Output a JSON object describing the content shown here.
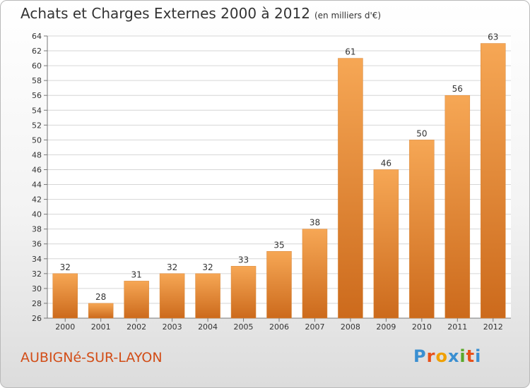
{
  "header": {
    "title": "Achats et Charges Externes 2000 à 2012",
    "subtitle": "(en milliers d'€)"
  },
  "footer": {
    "commune": "AUBIGNé-SUR-LAYON",
    "logo": "Proxiti"
  },
  "colors": {
    "bar_light": "#f6a755",
    "bar_dark": "#cc6a1c",
    "commune_text": "#d24d17",
    "logo_letters": [
      "#3a8fd1",
      "#e8501a",
      "#f0a000",
      "#3a8fd1",
      "#5aa82a",
      "#e8501a",
      "#3a8fd1"
    ]
  },
  "chart_data": {
    "type": "bar",
    "categories": [
      "2000",
      "2001",
      "2002",
      "2003",
      "2004",
      "2005",
      "2006",
      "2007",
      "2008",
      "2009",
      "2010",
      "2011",
      "2012"
    ],
    "values": [
      32,
      28,
      31,
      32,
      32,
      33,
      35,
      38,
      61,
      46,
      50,
      56,
      63
    ],
    "data_labels": [
      "32",
      "28",
      "31",
      "32",
      "32",
      "33",
      "35",
      "38",
      "61",
      "46",
      "50",
      "56",
      "63"
    ],
    "ylim": [
      26,
      64
    ],
    "yticks": [
      26,
      28,
      30,
      32,
      34,
      36,
      38,
      40,
      42,
      44,
      46,
      48,
      50,
      52,
      54,
      56,
      58,
      60,
      62,
      64
    ],
    "grid": true,
    "legend": "none"
  }
}
